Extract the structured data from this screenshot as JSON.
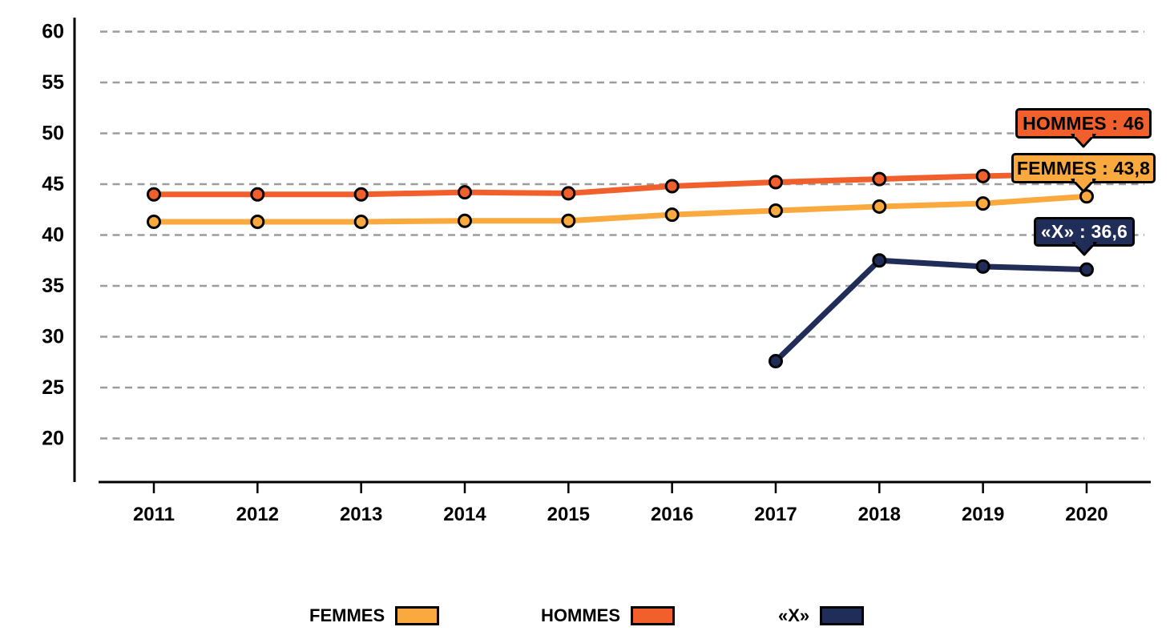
{
  "chart_data": {
    "type": "line",
    "title": "",
    "xlabel": "",
    "ylabel": "",
    "x_labels": [
      "2011",
      "2012",
      "2013",
      "2014",
      "2015",
      "2016",
      "2017",
      "2018",
      "2019",
      "2020"
    ],
    "y_ticks": [
      60,
      55,
      50,
      45,
      40,
      35,
      30,
      25,
      20
    ],
    "ylim": [
      16,
      61
    ],
    "grid": "horizontal dashed gray lines",
    "legend_position": "bottom",
    "series": [
      {
        "name": "FEMMES",
        "color": "#F9A93D",
        "values": [
          41.3,
          41.3,
          41.3,
          41.4,
          41.4,
          42.0,
          42.4,
          42.8,
          43.1,
          43.8
        ]
      },
      {
        "name": "HOMMES",
        "color": "#F1602C",
        "values": [
          44.0,
          44.0,
          44.0,
          44.2,
          44.1,
          44.8,
          45.2,
          45.5,
          45.8,
          46.0
        ]
      },
      {
        "name": "«X»",
        "color": "#202D59",
        "values": [
          null,
          null,
          null,
          null,
          null,
          null,
          27.6,
          37.5,
          36.9,
          36.6
        ]
      }
    ]
  },
  "callouts": [
    {
      "id": "hommes",
      "text": "HOMMES : 46",
      "bg": "#F1602C",
      "text_color": "#000000"
    },
    {
      "id": "femmes",
      "text": "FEMMES : 43,8",
      "bg": "#F9A93D",
      "text_color": "#000000"
    },
    {
      "id": "x",
      "text": "«X» : 36,6",
      "bg": "#202D59",
      "text_color": "#FFFFFF"
    }
  ],
  "legend": {
    "items": [
      {
        "label": "FEMMES",
        "color": "#F9A93D"
      },
      {
        "label": "HOMMES",
        "color": "#F1602C"
      },
      {
        "label": "«X»",
        "color": "#202D59"
      }
    ]
  }
}
